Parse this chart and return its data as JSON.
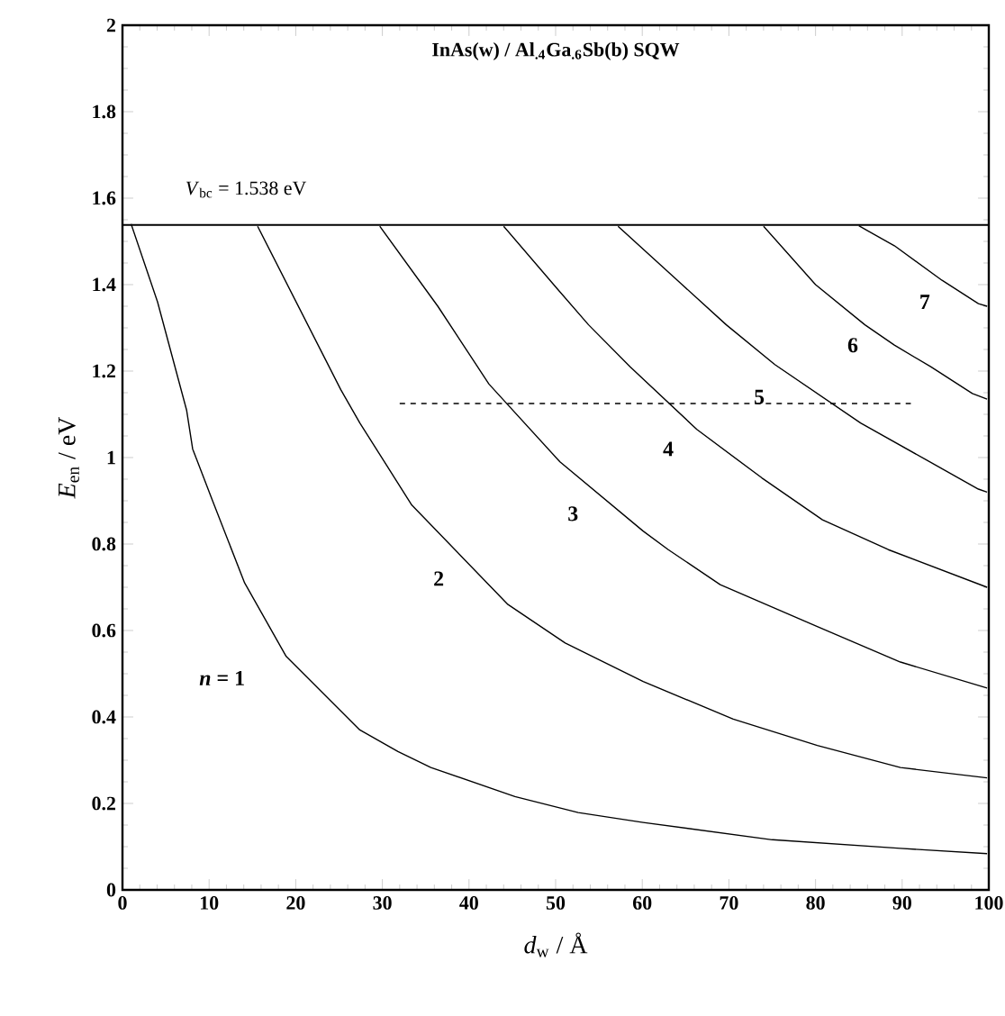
{
  "chart_data": {
    "type": "line",
    "title": "InAs(w) / Al$_{.4}$Ga$_{.6}$Sb(b)   SQW",
    "xlabel": "*d*$_{w}$ / Å",
    "ylabel": "*E*$_{en}$ / eV",
    "xlim": [
      0,
      100
    ],
    "ylim": [
      0,
      2
    ],
    "xticks": [
      0,
      10,
      20,
      30,
      40,
      50,
      60,
      70,
      80,
      90,
      100
    ],
    "yticks": [
      0,
      0.2,
      0.4,
      0.6,
      0.8,
      1,
      1.2,
      1.4,
      1.6,
      1.8,
      2
    ],
    "grid": false,
    "legend": false,
    "marker": "none",
    "ref_lines": [
      {
        "axis": "y",
        "value": 1.538,
        "label": "*V*$_{bc}$ = 1.538 eV",
        "color": "#000000",
        "line_style": "solid"
      }
    ],
    "series": [
      {
        "name": "*n* = 1",
        "color": "#000000",
        "x": [
          1.0,
          4.05,
          7.4,
          8.1,
          10.4,
          14.1,
          18.9,
          27.4,
          31.8,
          35.6,
          45.3,
          52.6,
          60.1,
          75,
          89.8,
          99.8
        ],
        "values": [
          1.54,
          1.36,
          1.11,
          1.02,
          0.9,
          0.71,
          0.54,
          0.37,
          0.32,
          0.283,
          0.216,
          0.179,
          0.156,
          0.116,
          0.096,
          0.084
        ]
      },
      {
        "name": "2",
        "color": "#000000",
        "x": [
          15.6,
          25.2,
          27.4,
          33.4,
          44.5,
          51.1,
          60.1,
          70.5,
          80.2,
          89.8,
          99.8
        ],
        "values": [
          1.535,
          1.157,
          1.08,
          0.89,
          0.66,
          0.571,
          0.482,
          0.395,
          0.334,
          0.283,
          0.259
        ]
      },
      {
        "name": "3",
        "color": "#000000",
        "x": [
          29.7,
          36.4,
          42.3,
          50.5,
          60.1,
          63,
          69,
          80.2,
          89.8,
          99.8
        ],
        "values": [
          1.535,
          1.35,
          1.17,
          0.99,
          0.83,
          0.787,
          0.706,
          0.609,
          0.527,
          0.467
        ]
      },
      {
        "name": "4",
        "color": "#000000",
        "x": [
          44,
          50.2,
          53.8,
          58.6,
          66.3,
          73.8,
          80.8,
          88.4,
          99.8
        ],
        "values": [
          1.535,
          1.39,
          1.307,
          1.21,
          1.065,
          0.953,
          0.856,
          0.787,
          0.7
        ]
      },
      {
        "name": "5",
        "color": "#000000",
        "x": [
          57.2,
          64.6,
          69.7,
          75.3,
          85.2,
          98.8,
          99.8
        ],
        "values": [
          1.535,
          1.4,
          1.307,
          1.215,
          1.08,
          0.927,
          0.92
        ]
      },
      {
        "name": "6",
        "color": "#000000",
        "x": [
          74,
          80,
          85.7,
          89.1,
          93.3,
          98.1,
          99.8
        ],
        "values": [
          1.535,
          1.4,
          1.307,
          1.26,
          1.21,
          1.148,
          1.135
        ]
      },
      {
        "name": "7",
        "color": "#000000",
        "x": [
          85,
          89.1,
          94.6,
          98.8,
          99.8
        ],
        "values": [
          1.536,
          1.49,
          1.41,
          1.356,
          1.35
        ]
      },
      {
        "color": "#000000",
        "line_style": "dashed",
        "x": [
          32,
          91
        ],
        "values": [
          1.125,
          1.125
        ]
      }
    ]
  }
}
